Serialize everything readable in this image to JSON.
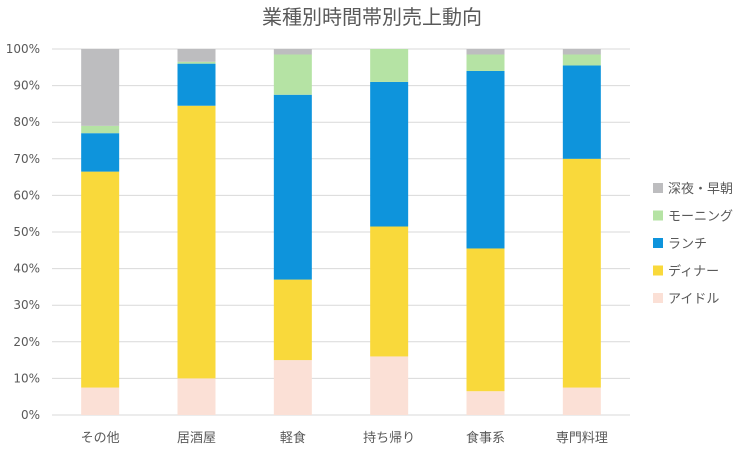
{
  "chart_data": {
    "type": "bar",
    "stacked": true,
    "title": "業種別時間帯別売上動向",
    "xlabel": "",
    "ylabel": "",
    "ylim": [
      0,
      100
    ],
    "ytick_labels": [
      "0%",
      "10%",
      "20%",
      "30%",
      "40%",
      "50%",
      "60%",
      "70%",
      "80%",
      "90%",
      "100%"
    ],
    "categories": [
      "その他",
      "居酒屋",
      "軽食",
      "持ち帰り",
      "食事系",
      "専門料理"
    ],
    "series": [
      {
        "name": "アイドル",
        "color": "#fbe0d6",
        "values": [
          7.5,
          10,
          15,
          16,
          6.5,
          7.5
        ]
      },
      {
        "name": "ディナー",
        "color": "#f9d93b",
        "values": [
          59,
          74.5,
          22,
          35.5,
          39,
          62.5
        ]
      },
      {
        "name": "ランチ",
        "color": "#0e94dc",
        "values": [
          10.5,
          11.5,
          50.5,
          39.5,
          48.5,
          25.5
        ]
      },
      {
        "name": "モーニング",
        "color": "#b5e3a4",
        "values": [
          2,
          0.5,
          11,
          9,
          4.5,
          3
        ]
      },
      {
        "name": "深夜・早朝",
        "color": "#bdbdbf",
        "values": [
          21,
          3.5,
          1.5,
          0,
          1.5,
          1.5
        ]
      }
    ],
    "legend_position": "right",
    "grid": true
  }
}
